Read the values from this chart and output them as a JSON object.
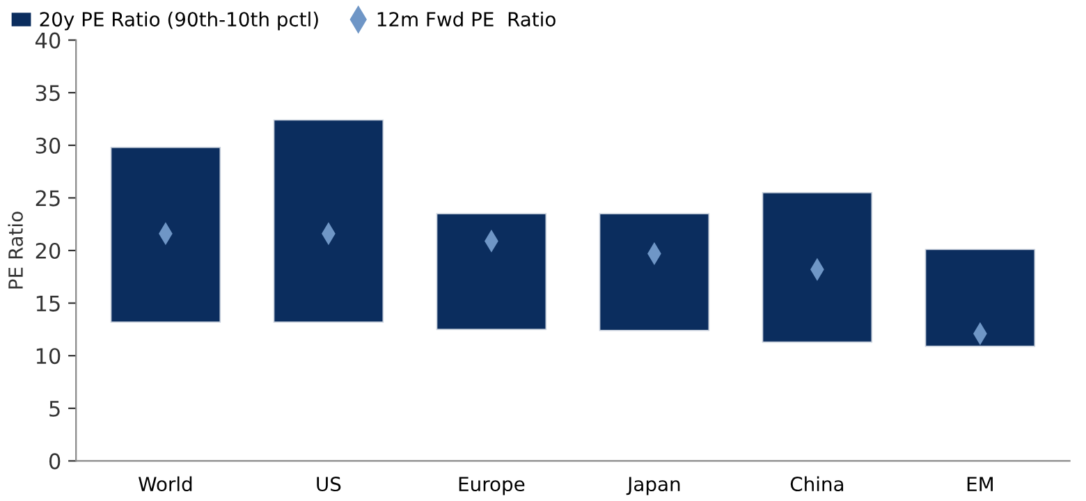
{
  "chart_data": {
    "type": "bar",
    "ylabel": "PE Ratio",
    "categories": [
      "World",
      "US",
      "Europe",
      "Japan",
      "China",
      "EM"
    ],
    "series": [
      {
        "name": "20y PE Ratio (90th-10th pctl)",
        "color": "#0b2d5e",
        "base": [
          13.2,
          13.2,
          12.5,
          12.4,
          11.3,
          10.9
        ],
        "values": [
          16.6,
          19.2,
          11.0,
          11.1,
          14.2,
          9.2
        ]
      },
      {
        "name": "12m Fwd PE  Ratio",
        "type": "scatter",
        "color": "#6f96c6",
        "marker": "diamond",
        "values": [
          21.6,
          21.6,
          20.9,
          19.7,
          18.2,
          12.1
        ]
      }
    ],
    "ylim": [
      0,
      40
    ],
    "yticks": [
      0,
      5,
      10,
      15,
      20,
      25,
      30,
      35,
      40
    ],
    "grid": false,
    "legend": "top left"
  }
}
